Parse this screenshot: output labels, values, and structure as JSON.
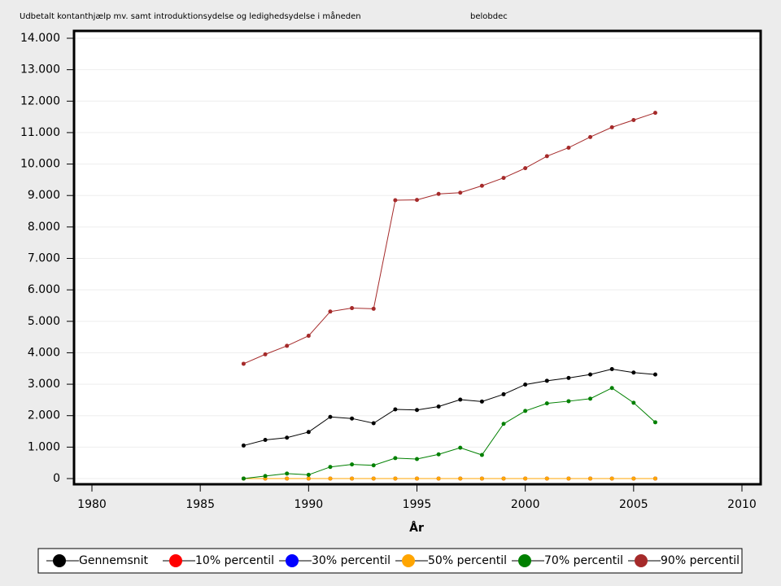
{
  "chart_data": {
    "type": "line",
    "title": "Udbetalt kontanthjælp mv. samt introduktionsydelse og ledighedsydelse i måneden",
    "subtitle": "belobdec",
    "x_label": "År",
    "x": [
      1987,
      1988,
      1989,
      1990,
      1991,
      1992,
      1993,
      1994,
      1995,
      1996,
      1997,
      1998,
      1999,
      2000,
      2001,
      2002,
      2003,
      2004,
      2005,
      2006
    ],
    "series": [
      {
        "name": "Gennemsnit",
        "color": "#000000",
        "values": [
          1050,
          1230,
          1300,
          1480,
          1960,
          1910,
          1760,
          2200,
          2180,
          2290,
          2510,
          2450,
          2680,
          2990,
          3110,
          3200,
          3310,
          3480,
          3370,
          3310
        ]
      },
      {
        "name": "10% percentil",
        "color": "#ff0000",
        "values": [
          0,
          0,
          0,
          0,
          0,
          0,
          0,
          0,
          0,
          0,
          0,
          0,
          0,
          0,
          0,
          0,
          0,
          0,
          0,
          0
        ]
      },
      {
        "name": "30% percentil",
        "color": "#0000ff",
        "values": [
          0,
          0,
          0,
          0,
          0,
          0,
          0,
          0,
          0,
          0,
          0,
          0,
          0,
          0,
          0,
          0,
          0,
          0,
          0,
          0
        ]
      },
      {
        "name": "50% percentil",
        "color": "#ffa500",
        "values": [
          0,
          0,
          0,
          0,
          0,
          0,
          0,
          0,
          0,
          0,
          0,
          0,
          0,
          0,
          0,
          0,
          0,
          0,
          0,
          0
        ]
      },
      {
        "name": "70% percentil",
        "color": "#008000",
        "values": [
          0,
          80,
          160,
          120,
          370,
          450,
          420,
          650,
          620,
          770,
          980,
          750,
          1740,
          2150,
          2390,
          2460,
          2540,
          2880,
          2410,
          1790
        ]
      },
      {
        "name": "90% percentil",
        "color": "#a52a2a",
        "values": [
          3650,
          3950,
          4220,
          4540,
          5310,
          5420,
          5400,
          8850,
          8860,
          9050,
          9090,
          9310,
          9560,
          9870,
          10250,
          10520,
          10860,
          11170,
          11400,
          11630
        ]
      }
    ],
    "xlim": [
      1980,
      2010
    ],
    "xticks": [
      1980,
      1985,
      1990,
      1995,
      2000,
      2005,
      2010
    ],
    "ylim": [
      0,
      14000
    ],
    "yticks": [
      0,
      {
        "value": 1000,
        "label": "1.000"
      },
      {
        "value": 2000,
        "label": "2.000"
      },
      {
        "value": 3000,
        "label": "3.000"
      },
      {
        "value": 4000,
        "label": "4.000"
      },
      {
        "value": 5000,
        "label": "5.000"
      },
      {
        "value": 6000,
        "label": "6.000"
      },
      {
        "value": 7000,
        "label": "7.000"
      },
      {
        "value": 8000,
        "label": "8.000"
      },
      {
        "value": 9000,
        "label": "9.000"
      },
      {
        "value": 10000,
        "label": "10.000"
      },
      {
        "value": 11000,
        "label": "11.000"
      },
      {
        "value": 12000,
        "label": "12.000"
      },
      {
        "value": 13000,
        "label": "13.000"
      },
      {
        "value": 14000,
        "label": "14.000"
      }
    ],
    "grid": true
  }
}
